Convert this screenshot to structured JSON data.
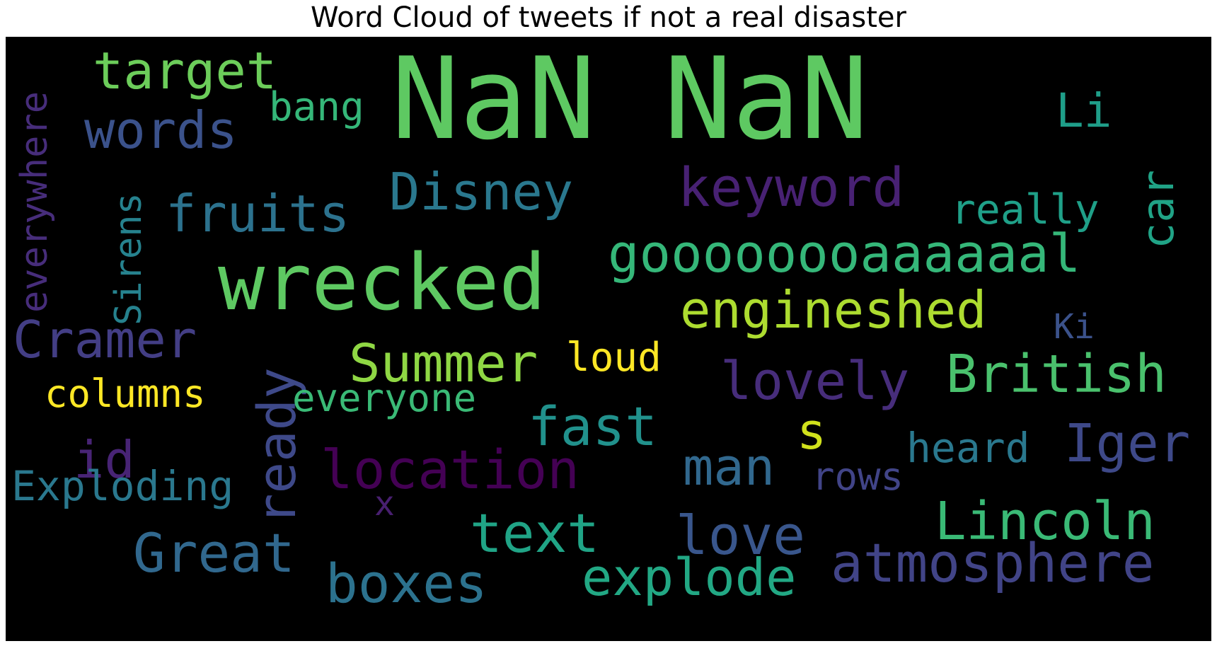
{
  "title": "Word Cloud of tweets if not a real disaster",
  "words": {
    "nan": {
      "text": "NaN NaN",
      "color": "#5ec962"
    },
    "target": {
      "text": "target",
      "color": "#6ccd5a"
    },
    "words": {
      "text": "words",
      "color": "#3b528b"
    },
    "bang": {
      "text": "bang",
      "color": "#35b779"
    },
    "li": {
      "text": "Li",
      "color": "#1f9e89"
    },
    "everywhere": {
      "text": "everywhere",
      "color": "#472d7b"
    },
    "sirens": {
      "text": "Sirens",
      "color": "#26828e"
    },
    "disney": {
      "text": "Disney",
      "color": "#2a788e"
    },
    "keyword": {
      "text": "keyword",
      "color": "#482173"
    },
    "car": {
      "text": "car",
      "color": "#20a386"
    },
    "fruits": {
      "text": "fruits",
      "color": "#2c728e"
    },
    "really": {
      "text": "really",
      "color": "#1fa088"
    },
    "wrecked": {
      "text": "wrecked",
      "color": "#5ec962"
    },
    "gooal": {
      "text": "goooooooaaaaaal",
      "color": "#35b779"
    },
    "engineshed": {
      "text": "engineshed",
      "color": "#addc30"
    },
    "ki": {
      "text": "Ki",
      "color": "#3b528b"
    },
    "cramer": {
      "text": "Cramer",
      "color": "#433e85"
    },
    "summer": {
      "text": "Summer",
      "color": "#8fd744"
    },
    "loud": {
      "text": "loud",
      "color": "#fde725"
    },
    "british": {
      "text": "British",
      "color": "#4ac16d"
    },
    "lovely": {
      "text": "lovely",
      "color": "#472d7b"
    },
    "ready": {
      "text": "ready",
      "color": "#3e4989"
    },
    "columns": {
      "text": "columns",
      "color": "#fde725"
    },
    "everyone": {
      "text": "everyone",
      "color": "#3aba76"
    },
    "s": {
      "text": "s",
      "color": "#d0e11c"
    },
    "fast": {
      "text": "fast",
      "color": "#21918c"
    },
    "iger": {
      "text": "Iger",
      "color": "#3e4989"
    },
    "heard": {
      "text": "heard",
      "color": "#2a788e"
    },
    "id": {
      "text": "id",
      "color": "#482475"
    },
    "location": {
      "text": "location",
      "color": "#440154"
    },
    "man": {
      "text": "man",
      "color": "#31688e"
    },
    "rows": {
      "text": "rows",
      "color": "#414487"
    },
    "exploding": {
      "text": "Exploding",
      "color": "#2a788e"
    },
    "x": {
      "text": "x",
      "color": "#481f70"
    },
    "lincoln": {
      "text": "Lincoln",
      "color": "#3aba76"
    },
    "text": {
      "text": "text",
      "color": "#20a486"
    },
    "love": {
      "text": "love",
      "color": "#39568c"
    },
    "great": {
      "text": "Great",
      "color": "#31688e"
    },
    "atmosphere": {
      "text": "atmosphere",
      "color": "#414487"
    },
    "explode": {
      "text": "explode",
      "color": "#22a884"
    },
    "boxes": {
      "text": "boxes",
      "color": "#2c728e"
    }
  }
}
